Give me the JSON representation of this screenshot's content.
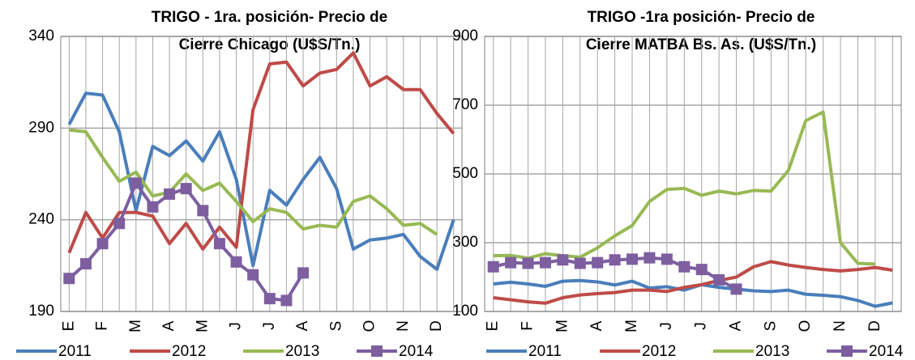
{
  "chart_data": [
    {
      "type": "line",
      "title": [
        "TRIGO - 1ra. posición- Precio de",
        "Cierre Chicago (U$S/Tn.)"
      ],
      "categories": [
        "E",
        null,
        "F",
        null,
        "M",
        null,
        "A",
        null,
        "M",
        null,
        "J",
        null,
        "J",
        null,
        "A",
        null,
        "S",
        null,
        "O",
        null,
        "N",
        null,
        "D",
        null
      ],
      "ylim": [
        190,
        340
      ],
      "yticks": [
        190,
        240,
        290,
        340
      ],
      "grid": true,
      "legend": "bottom",
      "series": [
        {
          "name": "2011",
          "color": "#4a7ebb",
          "values": [
            292,
            309,
            308,
            288,
            245,
            280,
            275,
            283,
            272,
            288,
            262,
            215,
            256,
            248,
            262,
            274,
            257,
            224,
            229,
            230,
            232,
            220,
            213,
            240
          ]
        },
        {
          "name": "2012",
          "color": "#be4b48",
          "values": [
            222,
            244,
            230,
            244,
            244,
            242,
            227,
            238,
            224,
            236,
            225,
            300,
            325,
            326,
            313,
            320,
            322,
            331,
            313,
            318,
            311,
            311,
            298,
            287
          ]
        },
        {
          "name": "2013",
          "color": "#98b954",
          "values": [
            289,
            288,
            274,
            261,
            266,
            253,
            255,
            265,
            256,
            260,
            250,
            239,
            246,
            244,
            235,
            237,
            236,
            250,
            253,
            246,
            237,
            238,
            232,
            null
          ]
        },
        {
          "name": "2014",
          "color": "#7d5fa0",
          "marker": "square",
          "values": [
            208,
            216,
            227,
            238,
            260,
            247,
            254,
            257,
            245,
            227,
            217,
            210,
            197,
            196,
            211,
            null,
            null,
            null,
            null,
            null,
            null,
            null,
            null,
            null
          ]
        }
      ]
    },
    {
      "type": "line",
      "title": [
        "TRIGO -1ra posición- Precio de",
        "Cierre MATBA Bs. As. (U$S/Tn.)"
      ],
      "categories": [
        "E",
        null,
        "F",
        null,
        "M",
        null,
        "A",
        null,
        "M",
        null,
        "J",
        null,
        "J",
        null,
        "A",
        null,
        "S",
        null,
        "O",
        null,
        "N",
        null,
        "D",
        null
      ],
      "ylim": [
        100,
        900
      ],
      "yticks": [
        100,
        300,
        500,
        700,
        900
      ],
      "grid": true,
      "legend": "bottom",
      "series": [
        {
          "name": "2011",
          "color": "#4a7ebb",
          "values": [
            180,
            185,
            180,
            173,
            188,
            190,
            186,
            177,
            188,
            168,
            172,
            162,
            178,
            170,
            165,
            160,
            158,
            162,
            150,
            147,
            143,
            132,
            115,
            125
          ]
        },
        {
          "name": "2012",
          "color": "#be4b48",
          "values": [
            140,
            134,
            128,
            124,
            140,
            148,
            152,
            155,
            162,
            162,
            158,
            170,
            178,
            190,
            200,
            230,
            245,
            235,
            228,
            222,
            218,
            222,
            228,
            220
          ]
        },
        {
          "name": "2013",
          "color": "#98b954",
          "values": [
            262,
            263,
            255,
            268,
            262,
            258,
            285,
            320,
            350,
            420,
            455,
            458,
            438,
            450,
            442,
            452,
            450,
            510,
            655,
            680,
            300,
            240,
            238,
            null
          ]
        },
        {
          "name": "2014",
          "color": "#7d5fa0",
          "marker": "square",
          "values": [
            230,
            242,
            240,
            242,
            250,
            240,
            242,
            250,
            252,
            256,
            252,
            230,
            222,
            192,
            165,
            null,
            null,
            null,
            null,
            null,
            null,
            null,
            null,
            null
          ]
        }
      ]
    }
  ]
}
